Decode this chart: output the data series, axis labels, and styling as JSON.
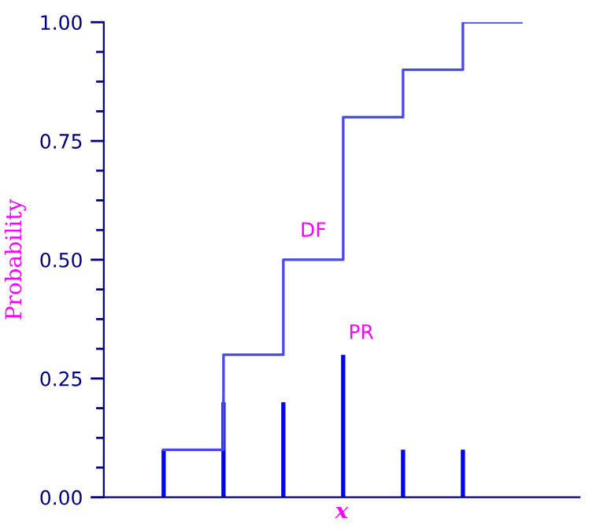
{
  "chart_data": {
    "type": "bar",
    "xlabel": "x",
    "ylabel": "Probability",
    "categories": [
      null,
      null,
      null,
      null,
      null,
      null
    ],
    "series": [
      {
        "name": "PR",
        "color": "#0000ff",
        "values": [
          0.1,
          0.2,
          0.2,
          0.3,
          0.1,
          0.1
        ]
      },
      {
        "name": "DF",
        "type": "step",
        "color": "#4a4ae8",
        "values": [
          0.1,
          0.3,
          0.5,
          0.8,
          0.9,
          1.0
        ]
      }
    ],
    "ylim": [
      0,
      1
    ],
    "yticks": [
      {
        "value": 0,
        "label": "0.00"
      },
      {
        "value": 0.25,
        "label": "0.25"
      },
      {
        "value": 0.5,
        "label": "0.50"
      },
      {
        "value": 0.75,
        "label": "0.75"
      },
      {
        "value": 1,
        "label": "1.00"
      }
    ],
    "grid": false,
    "legend": false
  }
}
